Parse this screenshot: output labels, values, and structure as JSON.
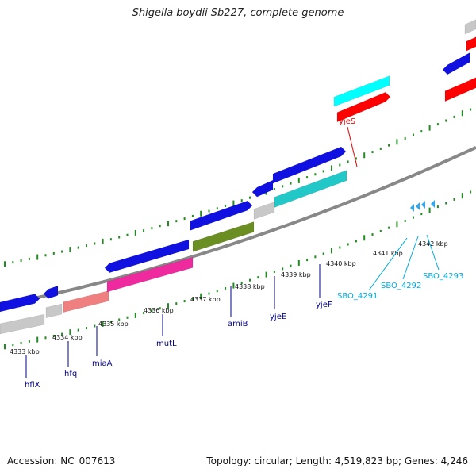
{
  "title": "Shigella boydii Sb227, complete genome",
  "footer": {
    "accession": "Accession: NC_007613",
    "stats": "Topology: circular; Length: 4,519,823 bp; Genes: 4,246"
  },
  "colors": {
    "forward": "#1010e0",
    "gray": "#c8c8c8",
    "salmon": "#f08080",
    "magenta": "#ee2a9e",
    "olive": "#6b8e23",
    "teal": "#22c8c8",
    "cyan": "#00ffff",
    "red": "#ff0000",
    "lightblue": "#30a8f0",
    "tick": "#228b22",
    "label_dark": "#00008b",
    "label_light": "#00aadd",
    "label_red": "#dd0000"
  },
  "kbp_labels": [
    "4333 kbp",
    "4334 kbp",
    "4335 kbp",
    "4336 kbp",
    "4337 kbp",
    "4338 kbp",
    "4339 kbp",
    "4340 kbp",
    "4341 kbp",
    "4342 kbp"
  ],
  "gene_labels": [
    {
      "name": "hflX",
      "color": "label_dark"
    },
    {
      "name": "hfq",
      "color": "label_dark"
    },
    {
      "name": "miaA",
      "color": "label_dark"
    },
    {
      "name": "mutL",
      "color": "label_dark"
    },
    {
      "name": "amiB",
      "color": "label_dark"
    },
    {
      "name": "yjeE",
      "color": "label_dark"
    },
    {
      "name": "yjeF",
      "color": "label_dark"
    },
    {
      "name": "SBO_4291",
      "color": "label_light"
    },
    {
      "name": "SBO_4292",
      "color": "label_light"
    },
    {
      "name": "SBO_4293",
      "color": "label_light"
    },
    {
      "name": "yjeS",
      "color": "label_red"
    }
  ]
}
